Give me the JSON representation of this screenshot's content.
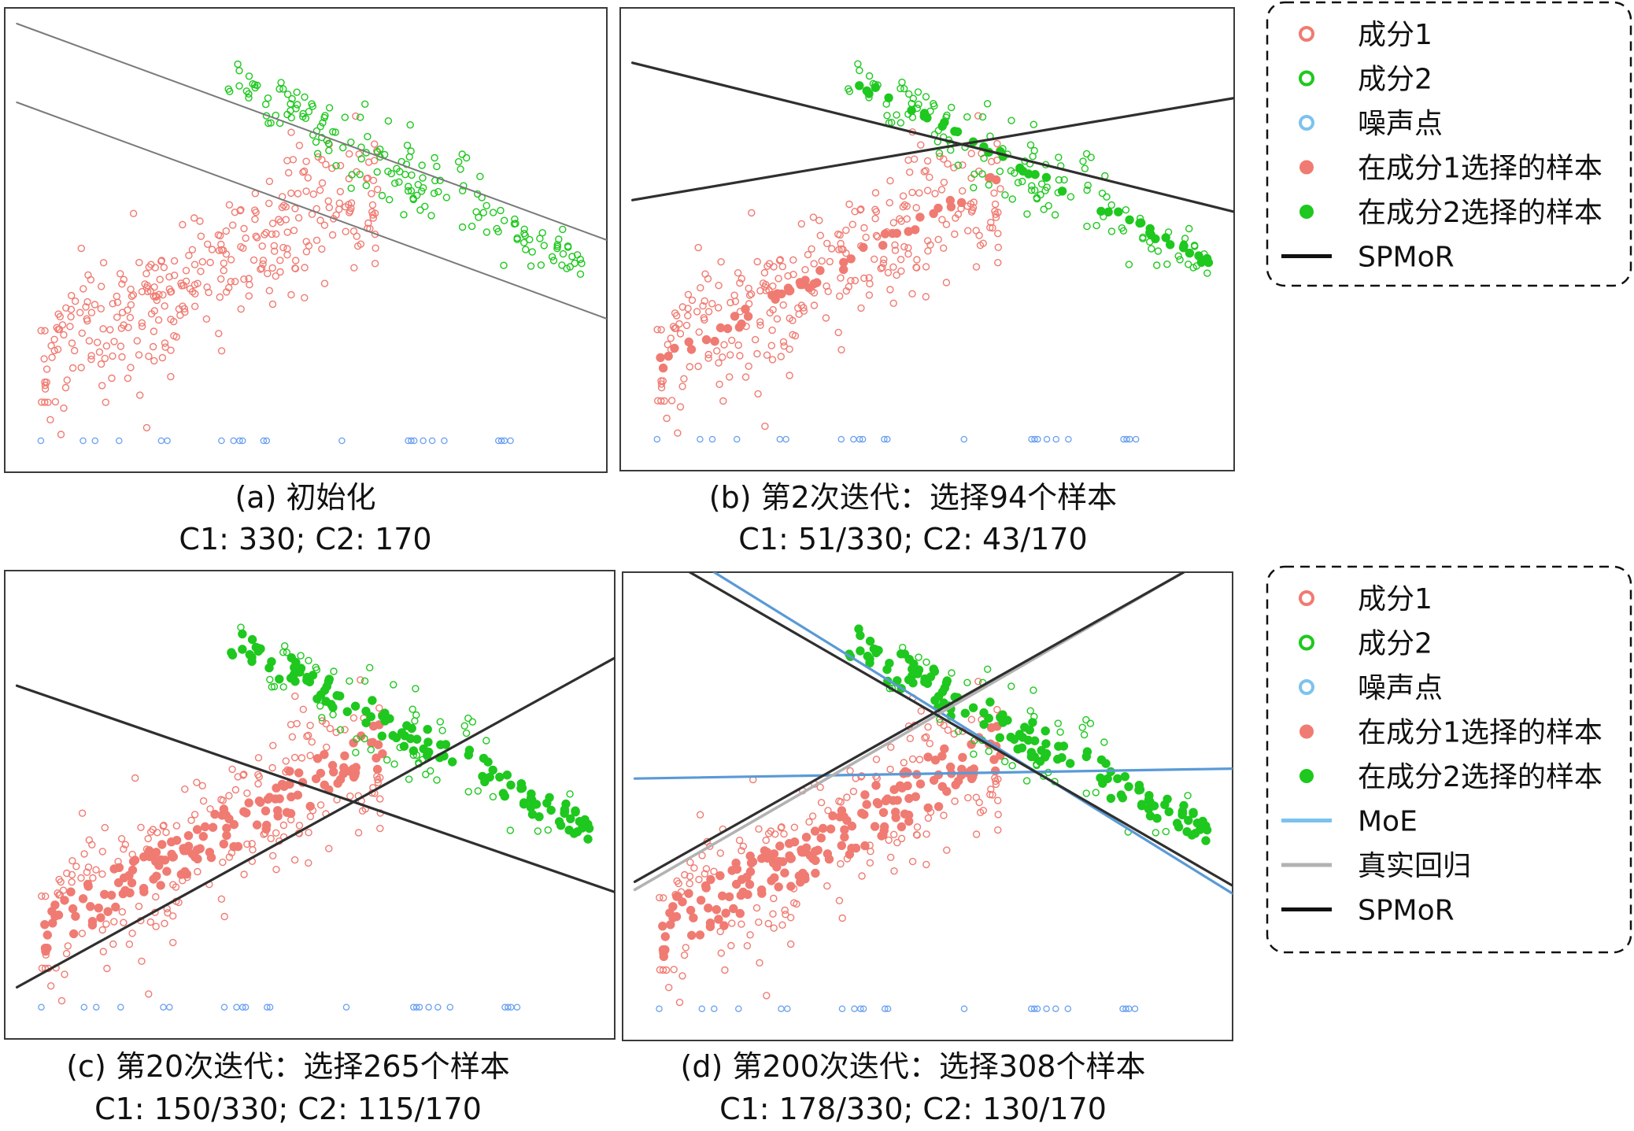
{
  "colors": {
    "c1": "#f07b72",
    "c2": "#1ec81e",
    "noise": "#6aa0f0",
    "spmor": "#2f2f2f",
    "init_line": "#7a7a7a",
    "moe": "#5a9ad6",
    "truth": "#b2b2b2"
  },
  "legends": [
    {
      "entries": [
        {
          "label": "成分1",
          "marker": "hollow-c1"
        },
        {
          "label": "成分2",
          "marker": "hollow-c2"
        },
        {
          "label": "噪声点",
          "marker": "hollow-noise"
        },
        {
          "label": "在成分1选择的样本",
          "marker": "filled-c1"
        },
        {
          "label": "在成分2选择的样本",
          "marker": "filled-c2"
        },
        {
          "label": "SPMoR",
          "marker": "line-spmor"
        }
      ]
    },
    {
      "entries": [
        {
          "label": "成分1",
          "marker": "hollow-c1"
        },
        {
          "label": "成分2",
          "marker": "hollow-c2"
        },
        {
          "label": "噪声点",
          "marker": "hollow-noise"
        },
        {
          "label": "在成分1选择的样本",
          "marker": "filled-c1"
        },
        {
          "label": "在成分2选择的样本",
          "marker": "filled-c2"
        },
        {
          "label": "MoE",
          "marker": "line-moe"
        },
        {
          "label": "真实回归",
          "marker": "line-truth"
        },
        {
          "label": "SPMoR",
          "marker": "line-spmor"
        }
      ]
    }
  ],
  "chart_data": [
    {
      "type": "scatter",
      "title": "(a) 初始化",
      "subtitle": "C1: 330; C2: 170",
      "xlim": [
        0,
        10
      ],
      "ylim": [
        -4.6,
        7.2
      ],
      "counts": {
        "c1": 330,
        "c2": 170
      },
      "selected": {
        "c1": 0,
        "c2": 0
      },
      "lines": [
        {
          "kind": "init",
          "x": [
            0.2,
            10
          ],
          "y": [
            6.8,
            1.3
          ]
        },
        {
          "kind": "init",
          "x": [
            0.2,
            10
          ],
          "y": [
            4.8,
            -0.7
          ]
        }
      ]
    },
    {
      "type": "scatter",
      "title": "(b) 第2次迭代：选择94个样本",
      "subtitle": "C1: 51/330; C2: 43/170",
      "xlim": [
        0,
        10
      ],
      "ylim": [
        -4.6,
        7.2
      ],
      "counts": {
        "c1": 330,
        "c2": 170
      },
      "selected": {
        "c1": 51,
        "c2": 43
      },
      "lines": [
        {
          "kind": "spmor",
          "x": [
            0.2,
            10
          ],
          "y": [
            5.8,
            2.0
          ]
        },
        {
          "kind": "spmor",
          "x": [
            0.2,
            10
          ],
          "y": [
            2.3,
            4.9
          ]
        }
      ]
    },
    {
      "type": "scatter",
      "title": "(c) 第20次迭代：选择265个样本",
      "subtitle": "C1: 150/330; C2: 115/170",
      "xlim": [
        0,
        10
      ],
      "ylim": [
        -4.6,
        7.2
      ],
      "counts": {
        "c1": 330,
        "c2": 170
      },
      "selected": {
        "c1": 150,
        "c2": 115
      },
      "lines": [
        {
          "kind": "spmor",
          "x": [
            0.2,
            10
          ],
          "y": [
            4.3,
            -0.9
          ]
        },
        {
          "kind": "spmor",
          "x": [
            0.2,
            10
          ],
          "y": [
            -3.3,
            5.0
          ]
        }
      ]
    },
    {
      "type": "scatter",
      "title": "(d) 第200次迭代：选择308个样本",
      "subtitle": "C1: 178/330; C2: 130/170",
      "xlim": [
        0,
        10
      ],
      "ylim": [
        -4.6,
        7.2
      ],
      "counts": {
        "c1": 330,
        "c2": 170
      },
      "selected": {
        "c1": 178,
        "c2": 130
      },
      "lines": [
        {
          "kind": "moe",
          "x": [
            0.2,
            10
          ],
          "y": [
            2.0,
            2.25
          ]
        },
        {
          "kind": "moe",
          "x": [
            1.5,
            10
          ],
          "y": [
            7.2,
            -0.9
          ]
        },
        {
          "kind": "truth",
          "x": [
            0.2,
            9.2
          ],
          "y": [
            -0.8,
            7.2
          ]
        },
        {
          "kind": "spmor",
          "x": [
            0.2,
            9.2
          ],
          "y": [
            -0.6,
            7.2
          ]
        },
        {
          "kind": "spmor",
          "x": [
            1.1,
            10
          ],
          "y": [
            7.2,
            -0.7
          ]
        }
      ]
    }
  ]
}
